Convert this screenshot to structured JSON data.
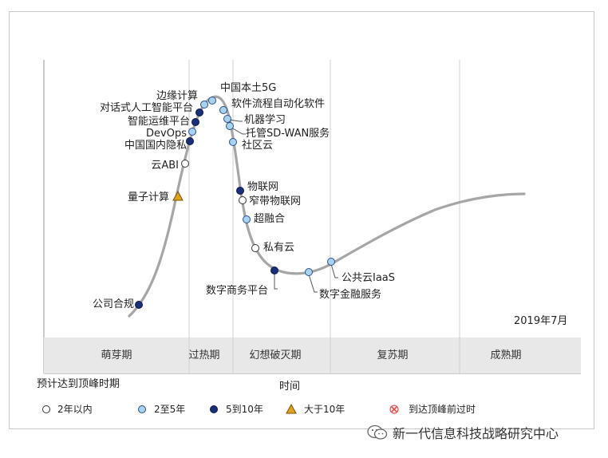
{
  "chart": {
    "date_label": "2019年7月",
    "x_axis_label": "时间",
    "phases": [
      "萌芽期",
      "过热期",
      "幻想破灭期",
      "复苏期",
      "成熟期"
    ],
    "colors": {
      "lt2": "#ffffff",
      "y2to5": "#a9d1f0",
      "y5to10": "#1a2f7a",
      "gt10": "#e0a020",
      "obsolete": "#e04040",
      "curve": "#a6a6a6",
      "band": "#e8e8e8"
    }
  },
  "technologies": [
    {
      "name": "中国本土5G",
      "category": "y2to5"
    },
    {
      "name": "边缘计算",
      "category": "y2to5"
    },
    {
      "name": "软件流程自动化软件",
      "category": "y2to5"
    },
    {
      "name": "对话式人工智能平台",
      "category": "y5to10"
    },
    {
      "name": "机器学习",
      "category": "y2to5"
    },
    {
      "name": "智能运维平台",
      "category": "y5to10"
    },
    {
      "name": "托管SD-WAN服务",
      "category": "y2to5"
    },
    {
      "name": "DevOps",
      "category": "y2to5"
    },
    {
      "name": "中国国内隐私",
      "category": "y5to10"
    },
    {
      "name": "社区云",
      "category": "y2to5"
    },
    {
      "name": "云ABI",
      "category": "lt2"
    },
    {
      "name": "量子计算",
      "category": "gt10"
    },
    {
      "name": "物联网",
      "category": "y5to10"
    },
    {
      "name": "窄带物联网",
      "category": "lt2"
    },
    {
      "name": "超融合",
      "category": "y2to5"
    },
    {
      "name": "私有云",
      "category": "lt2"
    },
    {
      "name": "数字商务平台",
      "category": "y5to10"
    },
    {
      "name": "数字金融服务",
      "category": "y2to5"
    },
    {
      "name": "公共云IaaS",
      "category": "y2to5"
    },
    {
      "name": "公司合规",
      "category": "y5to10"
    }
  ],
  "legend": {
    "title": "预计达到顶峰时期",
    "items": [
      {
        "key": "lt2",
        "label": "2年以内",
        "icon": "open-circle-icon"
      },
      {
        "key": "y2to5",
        "label": "2至5年",
        "icon": "light-blue-circle-icon"
      },
      {
        "key": "y5to10",
        "label": "5到10年",
        "icon": "dark-blue-circle-icon"
      },
      {
        "key": "gt10",
        "label": "大于10年",
        "icon": "orange-triangle-icon"
      },
      {
        "key": "obsolete",
        "label": "到达顶峰前过时",
        "icon": "red-x-circle-icon"
      }
    ]
  },
  "watermark": {
    "text": "新一代信息科技战略研究中心",
    "icon": "wechat-icon"
  }
}
